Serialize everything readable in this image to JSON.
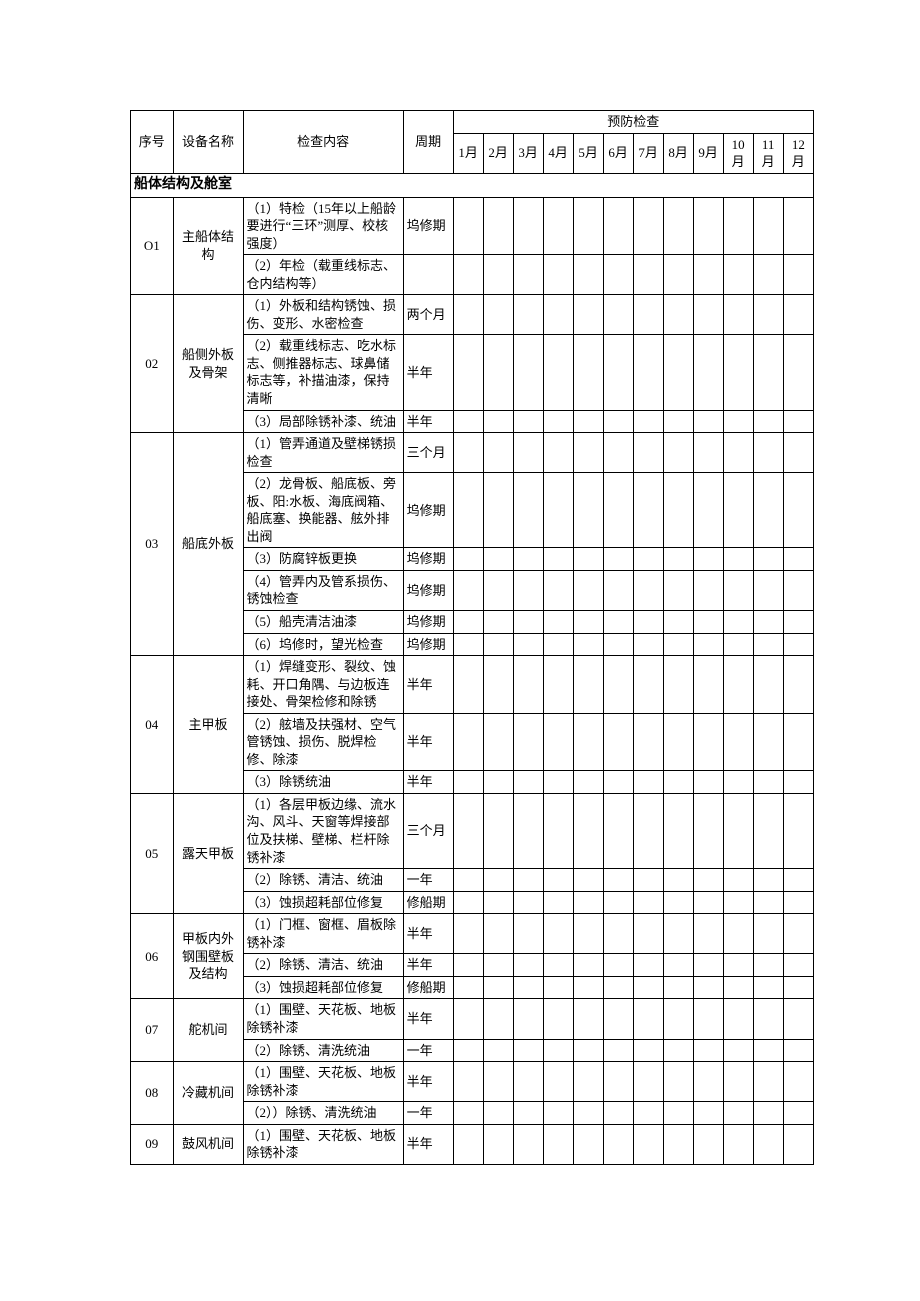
{
  "header": {
    "seq": "序号",
    "name": "设备名称",
    "content": "检查内容",
    "period": "周期",
    "preventive": "预防检查",
    "months": [
      "1月",
      "2月",
      "3月",
      "4月",
      "5月",
      "6月",
      "7月",
      "8月",
      "9月",
      "10月",
      "11月",
      "12月"
    ]
  },
  "section": "船体结构及舱室",
  "rows": [
    {
      "seq": "O1",
      "name": "主船体结构",
      "content": "（1）特检（15年以上船龄要进行“三环”测厚、校核强度）",
      "period": "坞修期",
      "seq_rowspan": 2,
      "name_rowspan": 2
    },
    {
      "content": "（2）年检（载重线标志、仓内结构等）",
      "period": ""
    },
    {
      "seq": "02",
      "name": "船侧外板及骨架",
      "content": "（1）外板和结构锈蚀、损伤、变形、水密检查",
      "period": "两个月",
      "seq_rowspan": 3,
      "name_rowspan": 3
    },
    {
      "content": "（2）载重线标志、吃水标志、侧推器标志、球鼻储标志等，补描油漆，保持清晰",
      "period": "半年"
    },
    {
      "content": "（3）局部除锈补漆、统油",
      "period": "半年"
    },
    {
      "seq": "03",
      "name": "船底外板",
      "content": "（1）管弄通道及壁梯锈损检查",
      "period": "三个月",
      "seq_rowspan": 6,
      "name_rowspan": 6
    },
    {
      "content": "（2）龙骨板、船底板、旁板、阳:水板、海底阀箱、船底塞、换能器、舷外排出阀",
      "period": "坞修期"
    },
    {
      "content": "（3）防腐锌板更换",
      "period": "坞修期"
    },
    {
      "content": "（4）管弄内及管系损伤、锈蚀检查",
      "period": "坞修期"
    },
    {
      "content": "（5）船壳清洁油漆",
      "period": "坞修期"
    },
    {
      "content": "（6）坞修时，望光检查",
      "period": "坞修期"
    },
    {
      "seq": "04",
      "name": "主甲板",
      "content": "（1）焊缝变形、裂纹、蚀耗、开口角隅、与边板连接处、骨架检修和除锈",
      "period": "半年",
      "seq_rowspan": 3,
      "name_rowspan": 3
    },
    {
      "content": "（2）舷墙及扶强材、空气管锈蚀、损伤、脱焊检修、除漆",
      "period": "半年"
    },
    {
      "content": "（3）除锈统油",
      "period": "半年"
    },
    {
      "seq": "05",
      "name": "露天甲板",
      "content": "（1）各层甲板边缘、流水沟、风斗、天窗等焊接部位及扶梯、壁梯、栏杆除锈补漆",
      "period": "三个月",
      "seq_rowspan": 3,
      "name_rowspan": 3
    },
    {
      "content": "（2）除锈、清洁、统油",
      "period": "一年"
    },
    {
      "content": "（3）蚀损超耗部位修复",
      "period": "修船期"
    },
    {
      "seq": "06",
      "name": "甲板内外钢围壁板及结构",
      "content": "（1）门框、窗框、眉板除锈补漆",
      "period": "半年",
      "seq_rowspan": 3,
      "name_rowspan": 3
    },
    {
      "content": "（2）除锈、清洁、统油",
      "period": "半年"
    },
    {
      "content": "（3）蚀损超耗部位修复",
      "period": "修船期"
    },
    {
      "seq": "07",
      "name": "舵机间",
      "content": "（1）围壁、天花板、地板除锈补漆",
      "period": "半年",
      "seq_rowspan": 2,
      "name_rowspan": 2
    },
    {
      "content": "（2）除锈、清洗统油",
      "period": "一年"
    },
    {
      "seq": "08",
      "name": "冷藏机间",
      "content": "（1）围壁、天花板、地板除锈补漆",
      "period": "半年",
      "seq_rowspan": 2,
      "name_rowspan": 2
    },
    {
      "content": "（2））除锈、清洗统油",
      "period": "一年"
    },
    {
      "seq": "09",
      "name": "鼓风机间",
      "content": "（1）围壁、天花板、地板除锈补漆",
      "period": "半年",
      "seq_rowspan": 1,
      "name_rowspan": 1
    }
  ]
}
